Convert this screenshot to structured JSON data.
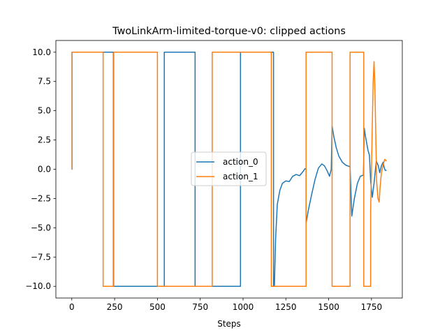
{
  "chart_data": {
    "type": "line",
    "title": "TwoLinkArm-limited-torque-v0: clipped actions",
    "xlabel": "Steps",
    "ylabel": "",
    "xlim": [
      -93,
      1930
    ],
    "ylim": [
      -11.0,
      11.0
    ],
    "xticks": [
      0,
      250,
      500,
      750,
      1000,
      1250,
      1500,
      1750
    ],
    "yticks": [
      -10.0,
      -7.5,
      -5.0,
      -2.5,
      0.0,
      2.5,
      5.0,
      7.5,
      10.0
    ],
    "ytick_labels": [
      "−10.0",
      "−7.5",
      "−5.0",
      "−2.5",
      "0.0",
      "2.5",
      "5.0",
      "7.5",
      "10.0"
    ],
    "grid": false,
    "legend_position": "center-right",
    "series": [
      {
        "name": "action_0",
        "color": "#1f77b4",
        "x": [
          0,
          1,
          1,
          183,
          183,
          243,
          243,
          540,
          540,
          720,
          720,
          985,
          985,
          1168,
          1168,
          1178,
          1178,
          1183,
          1190,
          1200,
          1215,
          1230,
          1250,
          1270,
          1290,
          1310,
          1330,
          1350,
          1362,
          1368,
          1368,
          1380,
          1400,
          1420,
          1440,
          1460,
          1475,
          1490,
          1505,
          1515,
          1520,
          1520,
          1530,
          1545,
          1560,
          1580,
          1600,
          1618,
          1625,
          1625,
          1635,
          1635,
          1650,
          1668,
          1685,
          1703,
          1708,
          1708,
          1715,
          1730,
          1738,
          1745,
          1755,
          1765,
          1778,
          1790,
          1798,
          1808,
          1818,
          1823,
          1830,
          1838
        ],
        "y": [
          0,
          0,
          10,
          10,
          10,
          10,
          -10,
          -10,
          10,
          10,
          -10,
          -10,
          10,
          10,
          10,
          10,
          -10,
          -10,
          -6,
          -3,
          -1.8,
          -1.2,
          -1.0,
          -1.05,
          -0.6,
          -0.45,
          -0.55,
          -0.2,
          0.05,
          0.0,
          -4.6,
          -3.6,
          -2.2,
          -0.9,
          0.1,
          0.45,
          0.3,
          -0.1,
          -0.6,
          0.0,
          3.7,
          3.7,
          2.8,
          1.8,
          1.1,
          0.6,
          0.35,
          0.25,
          0.2,
          0.2,
          -4.0,
          -4.0,
          -2.5,
          -1.2,
          -0.6,
          -0.5,
          3.5,
          3.5,
          2.8,
          1.6,
          1.2,
          -1.0,
          -2.4,
          -1.2,
          0.7,
          0.3,
          -0.3,
          0.3,
          0.6,
          0.2,
          -0.1,
          -0.1
        ]
      },
      {
        "name": "action_1",
        "color": "#ff7f0e",
        "x": [
          0,
          2,
          2,
          183,
          183,
          245,
          245,
          500,
          500,
          820,
          820,
          1165,
          1165,
          1368,
          1368,
          1520,
          1520,
          1625,
          1625,
          1705,
          1705,
          1745,
          1745,
          1750,
          1755,
          1760,
          1765,
          1770,
          1775,
          1780,
          1788,
          1795,
          1800,
          1808,
          1818,
          1828,
          1838
        ],
        "y": [
          0,
          0,
          10,
          10,
          -10,
          -10,
          10,
          10,
          -10,
          -10,
          10,
          10,
          -10,
          -10,
          10,
          10,
          -10,
          -10,
          10,
          10,
          -10,
          -10,
          -3.5,
          0.0,
          4.0,
          7.5,
          9.2,
          7.0,
          3.0,
          -1.0,
          -2.5,
          -2.8,
          -1.6,
          -0.3,
          0.4,
          0.85,
          0.7
        ]
      }
    ]
  }
}
